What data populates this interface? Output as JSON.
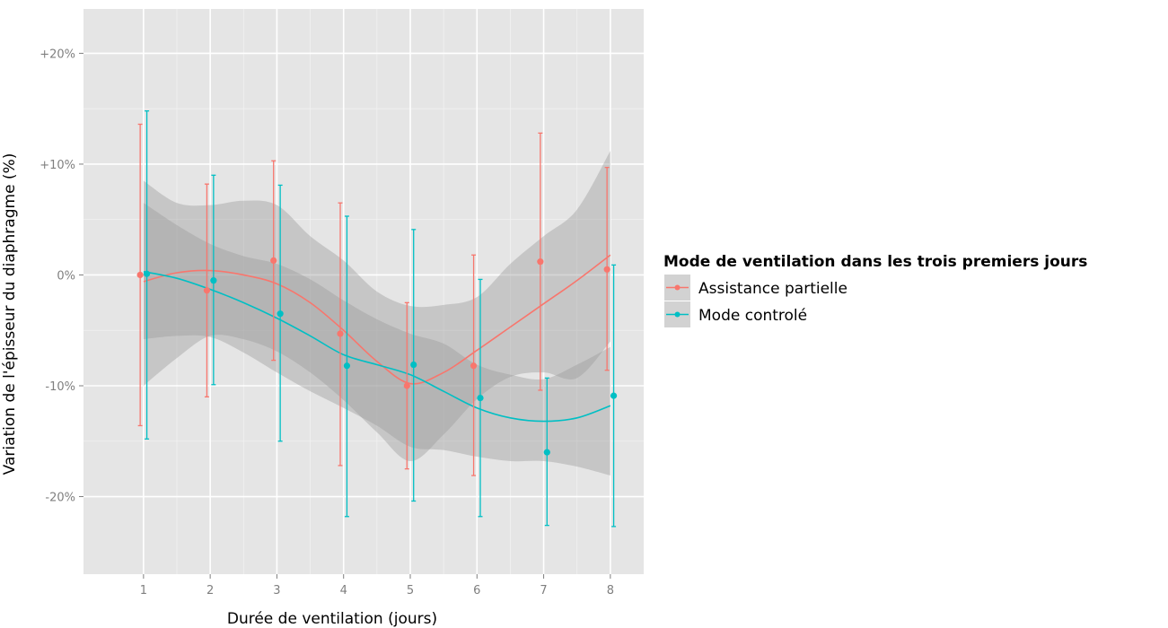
{
  "chart_data": {
    "type": "line",
    "xlabel": "Durée de ventilation (jours)",
    "ylabel": "Variation de l'épisseur du diaphragme (%)",
    "xlim": [
      0.1,
      8.5
    ],
    "ylim": [
      -27,
      24
    ],
    "x_ticks": [
      1,
      2,
      3,
      4,
      5,
      6,
      7,
      8
    ],
    "x_tick_labels": [
      "1",
      "2",
      "3",
      "4",
      "5",
      "6",
      "7",
      "8"
    ],
    "y_ticks": [
      20,
      10,
      0,
      -10,
      -20
    ],
    "y_tick_labels": [
      "+20%",
      "+10%",
      "0%",
      "-10%",
      "-20%"
    ],
    "grid": true,
    "legend": {
      "title": "Mode de ventilation dans les trois premiers jours",
      "position": "right"
    },
    "series": [
      {
        "name": "Assistance partielle",
        "color": "#F8766D",
        "x": [
          0.95,
          1.95,
          2.95,
          3.95,
          4.95,
          5.95,
          6.95,
          7.95
        ],
        "y": [
          0.0,
          -1.4,
          1.3,
          -5.3,
          -10.0,
          -8.2,
          1.2,
          0.5
        ],
        "err_low": [
          -13.6,
          -11.0,
          -7.7,
          -17.2,
          -17.5,
          -18.1,
          -10.4,
          -8.6
        ],
        "err_high": [
          13.6,
          8.2,
          10.3,
          6.5,
          -2.5,
          1.8,
          12.8,
          9.7
        ],
        "smooth": {
          "x": [
            1.0,
            1.5,
            2.0,
            2.5,
            3.0,
            3.5,
            4.0,
            4.5,
            5.0,
            5.5,
            6.0,
            6.5,
            7.0,
            7.5,
            8.0
          ],
          "y": [
            -0.6,
            0.2,
            0.4,
            0.0,
            -0.8,
            -2.5,
            -5.0,
            -7.8,
            -9.8,
            -8.8,
            -6.8,
            -4.7,
            -2.6,
            -0.5,
            1.8
          ],
          "band_low": [
            -10.0,
            -7.5,
            -5.5,
            -5.8,
            -6.9,
            -8.8,
            -11.3,
            -14.2,
            -16.8,
            -14.4,
            -11.2,
            -9.2,
            -8.8,
            -9.3,
            -6.0
          ],
          "band_high": [
            8.5,
            6.5,
            6.3,
            6.7,
            6.3,
            3.5,
            1.3,
            -1.5,
            -2.8,
            -2.7,
            -2.0,
            1.0,
            3.5,
            5.9,
            11.2
          ]
        }
      },
      {
        "name": "Mode controlé",
        "color": "#00BFC4",
        "x": [
          1.05,
          2.05,
          3.05,
          4.05,
          5.05,
          6.05,
          7.05,
          8.05
        ],
        "y": [
          0.1,
          -0.5,
          -3.5,
          -8.2,
          -8.1,
          -11.1,
          -16.0,
          -10.9
        ],
        "err_low": [
          -14.8,
          -9.9,
          -15.0,
          -21.8,
          -20.4,
          -21.8,
          -22.6,
          -22.7
        ],
        "err_high": [
          14.8,
          9.0,
          8.1,
          5.3,
          4.1,
          -0.4,
          -9.3,
          0.9
        ],
        "smooth": {
          "x": [
            1.0,
            1.5,
            2.0,
            2.5,
            3.0,
            3.5,
            4.0,
            4.5,
            5.0,
            5.5,
            6.0,
            6.5,
            7.0,
            7.5,
            8.0
          ],
          "y": [
            0.3,
            -0.3,
            -1.3,
            -2.5,
            -3.9,
            -5.5,
            -7.2,
            -8.1,
            -9.0,
            -10.5,
            -12.0,
            -12.9,
            -13.2,
            -12.9,
            -11.8
          ],
          "band_low": [
            -5.8,
            -5.5,
            -5.6,
            -7.0,
            -8.8,
            -10.5,
            -12.0,
            -13.6,
            -15.5,
            -15.8,
            -16.4,
            -16.8,
            -16.8,
            -17.3,
            -18.1
          ],
          "band_high": [
            6.5,
            4.5,
            2.8,
            1.7,
            1.0,
            -0.4,
            -2.3,
            -4.0,
            -5.3,
            -6.2,
            -8.1,
            -9.0,
            -9.4,
            -8.1,
            -6.5
          ]
        }
      }
    ]
  }
}
